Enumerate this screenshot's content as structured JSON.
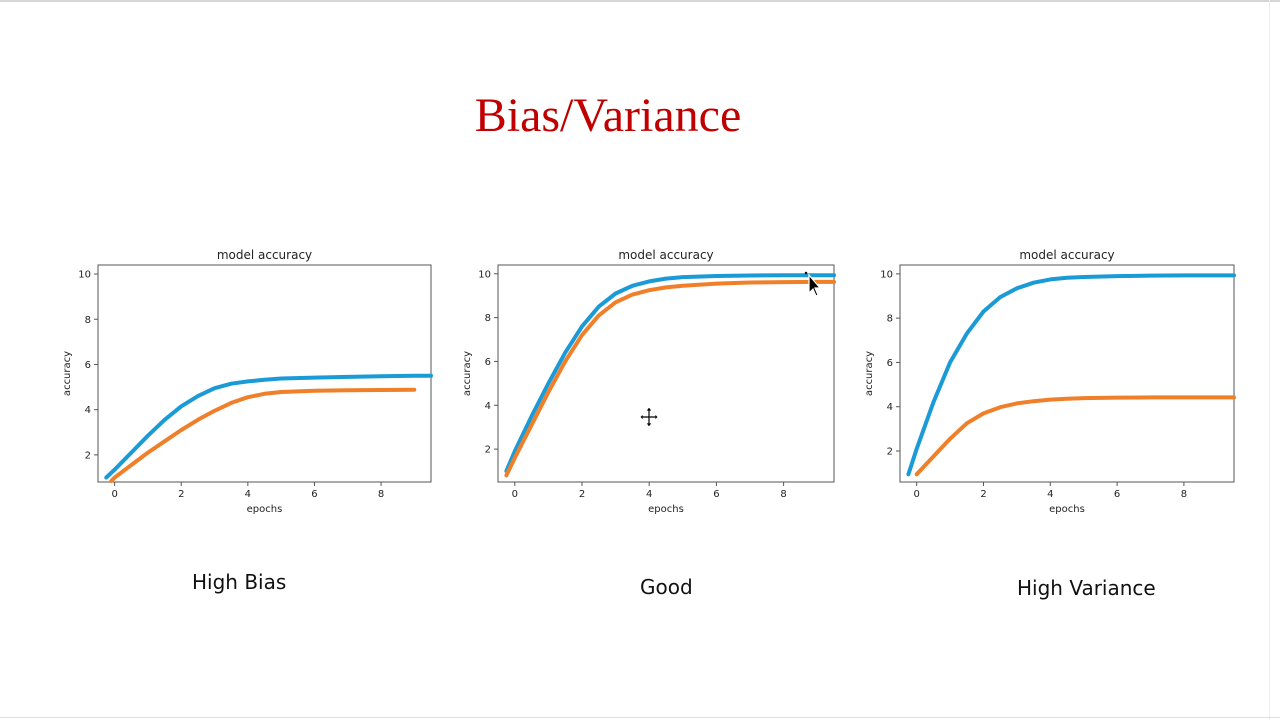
{
  "slide": {
    "title": "Bias/Variance",
    "captions": [
      "High Bias",
      "Good",
      "High Variance"
    ]
  },
  "colors": {
    "title": "#c00000",
    "training": "#1a9ad6",
    "validation": "#f07f2a"
  },
  "chart_data": [
    {
      "type": "line",
      "title": "model accuracy",
      "xlabel": "epochs",
      "ylabel": "accuracy",
      "xlim": [
        -0.5,
        9.5
      ],
      "ylim": [
        0.8,
        10.4
      ],
      "xticks": [
        0,
        2,
        4,
        6,
        8
      ],
      "yticks": [
        2,
        4,
        6,
        8,
        10
      ],
      "grid": false,
      "series": [
        {
          "color": "#1a9ad6",
          "x": [
            -0.25,
            0,
            0.5,
            1,
            1.5,
            2,
            2.5,
            3,
            3.5,
            4,
            4.5,
            5,
            6,
            7,
            8,
            9,
            9.5
          ],
          "y": [
            1.0,
            1.35,
            2.1,
            2.85,
            3.55,
            4.15,
            4.6,
            4.95,
            5.15,
            5.25,
            5.32,
            5.38,
            5.42,
            5.45,
            5.48,
            5.5,
            5.5
          ]
        },
        {
          "color": "#f07f2a",
          "x": [
            -0.1,
            0,
            0.5,
            1,
            1.5,
            2,
            2.5,
            3,
            3.5,
            4,
            4.5,
            5,
            6,
            7,
            8,
            9
          ],
          "y": [
            0.85,
            1.0,
            1.55,
            2.1,
            2.6,
            3.1,
            3.55,
            3.95,
            4.3,
            4.55,
            4.7,
            4.78,
            4.84,
            4.86,
            4.87,
            4.88
          ]
        }
      ]
    },
    {
      "type": "line",
      "title": "model accuracy",
      "xlabel": "epochs",
      "ylabel": "accuracy",
      "xlim": [
        -0.5,
        9.5
      ],
      "ylim": [
        0.5,
        10.4
      ],
      "xticks": [
        0,
        2,
        4,
        6,
        8
      ],
      "yticks": [
        2,
        4,
        6,
        8,
        10
      ],
      "grid": false,
      "series": [
        {
          "color": "#1a9ad6",
          "x": [
            -0.25,
            0,
            0.5,
            1,
            1.5,
            2,
            2.5,
            3,
            3.5,
            4,
            4.5,
            5,
            6,
            7,
            8,
            9,
            9.5
          ],
          "y": [
            1.0,
            1.9,
            3.5,
            5.0,
            6.4,
            7.6,
            8.5,
            9.1,
            9.45,
            9.65,
            9.78,
            9.85,
            9.9,
            9.92,
            9.93,
            9.93,
            9.93
          ]
        },
        {
          "color": "#f07f2a",
          "x": [
            -0.25,
            0,
            0.5,
            1,
            1.5,
            2,
            2.5,
            3,
            3.5,
            4,
            4.5,
            5,
            6,
            7,
            8,
            9,
            9.5
          ],
          "y": [
            0.8,
            1.6,
            3.1,
            4.6,
            6.0,
            7.2,
            8.1,
            8.7,
            9.05,
            9.25,
            9.38,
            9.45,
            9.55,
            9.6,
            9.62,
            9.63,
            9.63
          ]
        }
      ]
    },
    {
      "type": "line",
      "title": "model accuracy",
      "xlabel": "epochs",
      "ylabel": "accuracy",
      "xlim": [
        -0.5,
        9.5
      ],
      "ylim": [
        0.6,
        10.4
      ],
      "xticks": [
        0,
        2,
        4,
        6,
        8
      ],
      "yticks": [
        2,
        4,
        6,
        8,
        10
      ],
      "grid": false,
      "series": [
        {
          "color": "#1a9ad6",
          "x": [
            -0.25,
            0,
            0.5,
            1,
            1.5,
            2,
            2.5,
            3,
            3.5,
            4,
            4.5,
            5,
            6,
            7,
            8,
            9,
            9.5
          ],
          "y": [
            0.95,
            2.1,
            4.2,
            6.0,
            7.3,
            8.3,
            8.95,
            9.35,
            9.6,
            9.75,
            9.82,
            9.86,
            9.9,
            9.92,
            9.93,
            9.93,
            9.93
          ]
        },
        {
          "color": "#f07f2a",
          "x": [
            0,
            0.5,
            1,
            1.5,
            2,
            2.5,
            3,
            3.5,
            4,
            4.5,
            5,
            6,
            7,
            8,
            9,
            9.5
          ],
          "y": [
            0.95,
            1.75,
            2.55,
            3.25,
            3.7,
            3.98,
            4.15,
            4.25,
            4.32,
            4.36,
            4.39,
            4.41,
            4.42,
            4.42,
            4.42,
            4.42
          ]
        }
      ]
    }
  ]
}
